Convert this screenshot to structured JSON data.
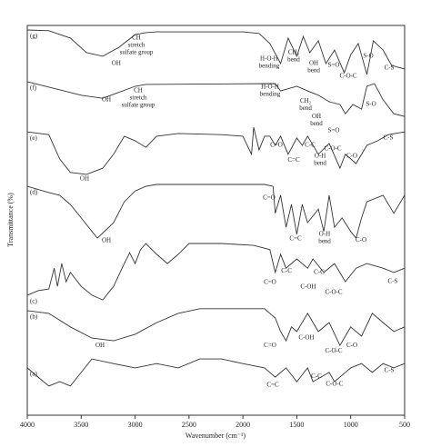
{
  "chart_data": {
    "type": "line",
    "x_label": "Wavenumber (cm⁻¹)",
    "y_label": "Transmittance (%)",
    "xlim": [
      4000,
      500
    ],
    "xticks": [
      4000,
      3500,
      3000,
      2500,
      2000,
      1500,
      1000,
      500
    ],
    "ylim": [
      0,
      100
    ],
    "series": [
      {
        "name": "(a)",
        "color": "#333333",
        "x": [
          4000,
          3900,
          3800,
          3700,
          3600,
          3500,
          3400,
          3200,
          3000,
          2800,
          2600,
          2400,
          2200,
          2000,
          1800,
          1700,
          1600,
          1500,
          1400,
          1350,
          1200,
          1150,
          1000,
          900,
          800,
          700,
          600,
          500
        ],
        "values": [
          11.8,
          9.4,
          7.1,
          8.2,
          7.1,
          10.6,
          14.1,
          12.9,
          11.8,
          12.9,
          11.8,
          14.1,
          14.1,
          12.9,
          11.8,
          9.4,
          11.8,
          8.2,
          11.8,
          8.2,
          10.6,
          8.2,
          11.8,
          12.9,
          10.6,
          12.9,
          11.8,
          12.9
        ]
      },
      {
        "name": "(b)",
        "color": "#333333",
        "x": [
          4000,
          3800,
          3600,
          3400,
          3200,
          3000,
          2800,
          2600,
          2400,
          2000,
          1800,
          1700,
          1650,
          1600,
          1550,
          1500,
          1400,
          1300,
          1200,
          1100,
          1000,
          900,
          800,
          700,
          600,
          500
        ],
        "values": [
          26.6,
          25.9,
          22.4,
          19.5,
          18.8,
          20.5,
          23.5,
          25.9,
          27.1,
          27.1,
          27.1,
          24.7,
          21.2,
          18.8,
          22.4,
          21.2,
          25.9,
          21.2,
          23.5,
          17.6,
          22.4,
          20.0,
          25.9,
          23.5,
          21.2,
          22.4
        ]
      },
      {
        "name": "(c)",
        "color": "#333333",
        "x": [
          4000,
          3900,
          3800,
          3750,
          3720,
          3680,
          3640,
          3600,
          3500,
          3400,
          3300,
          3200,
          3100,
          3050,
          3000,
          2950,
          2900,
          2800,
          2700,
          2600,
          2500,
          2200,
          1900,
          1750,
          1700,
          1650,
          1600,
          1500,
          1400,
          1350,
          1250,
          1150,
          1050,
          950,
          850,
          700,
          600,
          500
        ],
        "values": [
          30.6,
          31.8,
          32.2,
          37.6,
          32.9,
          38.8,
          34.1,
          36.5,
          32.9,
          30.6,
          29.4,
          32.9,
          38.8,
          41.6,
          38.8,
          42.4,
          44.0,
          41.2,
          38.8,
          41.2,
          44.0,
          44.0,
          43.5,
          42.4,
          36.5,
          41.2,
          37.6,
          40.0,
          37.6,
          40.0,
          36.5,
          38.8,
          34.1,
          37.6,
          38.8,
          37.6,
          36.5,
          37.6
        ]
      },
      {
        "name": "(d)",
        "color": "#333333",
        "x": [
          4000,
          3800,
          3700,
          3600,
          3500,
          3350,
          3200,
          3100,
          3000,
          2900,
          2800,
          2500,
          2000,
          1800,
          1720,
          1700,
          1650,
          1600,
          1550,
          1500,
          1450,
          1400,
          1300,
          1250,
          1200,
          1150,
          1080,
          1000,
          950,
          900,
          850,
          700,
          600,
          500
        ],
        "values": [
          58.8,
          57.2,
          56.5,
          54.1,
          50.6,
          45.4,
          49.4,
          54.8,
          57.6,
          58.8,
          59.3,
          59.3,
          59.3,
          59.3,
          58.8,
          51.8,
          56.5,
          48.2,
          54.1,
          46.4,
          54.1,
          49.4,
          52.9,
          47.1,
          56.5,
          48.2,
          50.6,
          47.1,
          45.4,
          50.6,
          54.8,
          56.5,
          51.8,
          56.5
        ]
      },
      {
        "name": "(e)",
        "color": "#333333",
        "x": [
          4000,
          3800,
          3700,
          3600,
          3450,
          3300,
          3200,
          3100,
          3000,
          2900,
          2800,
          2600,
          2200,
          2000,
          1920,
          1900,
          1850,
          1800,
          1750,
          1700,
          1650,
          1580,
          1500,
          1450,
          1400,
          1300,
          1200,
          1100,
          1050,
          950,
          850,
          750,
          650,
          500
        ],
        "values": [
          72.9,
          72.2,
          65.9,
          62.4,
          61.9,
          63.5,
          67.1,
          71.8,
          70.6,
          68.9,
          71.8,
          72.5,
          72.2,
          71.8,
          67.1,
          74.1,
          68.2,
          71.8,
          71.8,
          69.4,
          71.8,
          67.1,
          71.3,
          69.4,
          71.8,
          67.1,
          69.9,
          63.5,
          67.1,
          64.7,
          69.4,
          70.6,
          72.2,
          72.9
        ]
      },
      {
        "name": "(f)",
        "color": "#333333",
        "x": [
          4000,
          3500,
          3300,
          3000,
          2900,
          1700,
          1650,
          1500,
          1400,
          1300,
          1200,
          1100,
          1050,
          980,
          900,
          850,
          780,
          700,
          600,
          500
        ],
        "values": [
          85.9,
          82.4,
          81.6,
          84.7,
          85.2,
          85.4,
          83.5,
          84.7,
          83.5,
          82.4,
          80.7,
          80.0,
          77.6,
          80.0,
          78.8,
          84.7,
          85.4,
          81.2,
          77.6,
          76.9
        ]
      },
      {
        "name": "(g)",
        "color": "#333333",
        "x": [
          4000,
          3800,
          3600,
          3450,
          3300,
          3150,
          3000,
          2900,
          2800,
          2000,
          1850,
          1750,
          1650,
          1580,
          1500,
          1440,
          1380,
          1300,
          1230,
          1150,
          1060,
          1000,
          930,
          850,
          790,
          700,
          620,
          500
        ],
        "values": [
          99.3,
          99.1,
          97.2,
          93.4,
          92.5,
          94.8,
          98.1,
          98.6,
          98.8,
          98.8,
          98.4,
          95.8,
          90.6,
          97.2,
          92.5,
          97.6,
          93.4,
          96.5,
          90.6,
          94.1,
          88.2,
          92.9,
          95.8,
          87.8,
          96.5,
          94.1,
          90.1,
          89.2
        ]
      }
    ],
    "annotations": [
      {
        "text": [
          "OH"
        ],
        "x": 3174,
        "y": 90.6
      },
      {
        "text": [
          "CH",
          "stretch",
          "sulfate group"
        ],
        "x": 2988,
        "y": 97.2
      },
      {
        "text": [
          "H-O-H",
          "bending"
        ],
        "x": 1757,
        "y": 91.8
      },
      {
        "text": [
          "CH₂",
          "bend"
        ],
        "x": 1529,
        "y": 93.4
      },
      {
        "text": [
          "OH",
          "bend"
        ],
        "x": 1343,
        "y": 90.6
      },
      {
        "text": [
          "S=O"
        ],
        "x": 1158,
        "y": 90.1
      },
      {
        "text": [
          "C-O-C"
        ],
        "x": 1023,
        "y": 87.3
      },
      {
        "text": [
          "S-O"
        ],
        "x": 837,
        "y": 92.5
      },
      {
        "text": [
          "C-S"
        ],
        "x": 643,
        "y": 89.4
      },
      {
        "text": [
          "OH"
        ],
        "x": 3266,
        "y": 81.2
      },
      {
        "text": [
          "CH",
          "stretch",
          "sulfate group"
        ],
        "x": 2971,
        "y": 83.5
      },
      {
        "text": [
          "H-O-H",
          "bending"
        ],
        "x": 1748,
        "y": 84.5
      },
      {
        "text": [
          "CH₂",
          "bend"
        ],
        "x": 1419,
        "y": 80.9
      },
      {
        "text": [
          "OH",
          "bend"
        ],
        "x": 1318,
        "y": 76.9
      },
      {
        "text": [
          "S=O"
        ],
        "x": 1158,
        "y": 73.2
      },
      {
        "text": [
          "S-O"
        ],
        "x": 812,
        "y": 80.0
      },
      {
        "text": [
          "OH"
        ],
        "x": 3469,
        "y": 60.7
      },
      {
        "text": [
          "C=O"
        ],
        "x": 1689,
        "y": 69.4
      },
      {
        "text": [
          "C=C"
        ],
        "x": 1529,
        "y": 65.6
      },
      {
        "text": [
          "C-C"
        ],
        "x": 1377,
        "y": 69.4
      },
      {
        "text": [
          "O-H",
          "bend"
        ],
        "x": 1284,
        "y": 66.6
      },
      {
        "text": [
          "C-O-C"
        ],
        "x": 1166,
        "y": 68.5
      },
      {
        "text": [
          "C-O"
        ],
        "x": 989,
        "y": 66.6
      },
      {
        "text": [
          "C-S"
        ],
        "x": 652,
        "y": 71.3
      },
      {
        "text": [
          "OH"
        ],
        "x": 3266,
        "y": 44.7
      },
      {
        "text": [
          "C=O"
        ],
        "x": 1757,
        "y": 55.8
      },
      {
        "text": [
          "C=C"
        ],
        "x": 1512,
        "y": 45.2
      },
      {
        "text": [
          "O-H",
          "bend"
        ],
        "x": 1242,
        "y": 46.4
      },
      {
        "text": [
          "C-O"
        ],
        "x": 905,
        "y": 44.9
      },
      {
        "text": [
          "C=O"
        ],
        "x": 1748,
        "y": 33.9
      },
      {
        "text": [
          "C-C"
        ],
        "x": 1596,
        "y": 36.9
      },
      {
        "text": [
          "C-OH"
        ],
        "x": 1394,
        "y": 32.7
      },
      {
        "text": [
          "C-C"
        ],
        "x": 1293,
        "y": 36.5
      },
      {
        "text": [
          "C-O-C"
        ],
        "x": 1158,
        "y": 31.3
      },
      {
        "text": [
          "C-S"
        ],
        "x": 610,
        "y": 34.1
      },
      {
        "text": [
          "OH"
        ],
        "x": 3325,
        "y": 17.6
      },
      {
        "text": [
          "C=O"
        ],
        "x": 1748,
        "y": 17.6
      },
      {
        "text": [
          "C-OH"
        ],
        "x": 1411,
        "y": 19.5
      },
      {
        "text": [
          "C-O-C"
        ],
        "x": 1158,
        "y": 16.2
      },
      {
        "text": [
          "C-O"
        ],
        "x": 989,
        "y": 17.6
      },
      {
        "text": [
          "C=C"
        ],
        "x": 1723,
        "y": 7.3
      },
      {
        "text": [
          "C-C"
        ],
        "x": 1318,
        "y": 9.6
      },
      {
        "text": [
          "C-O-C"
        ],
        "x": 1150,
        "y": 7.6
      },
      {
        "text": [
          "C-S"
        ],
        "x": 643,
        "y": 11.1
      }
    ]
  }
}
